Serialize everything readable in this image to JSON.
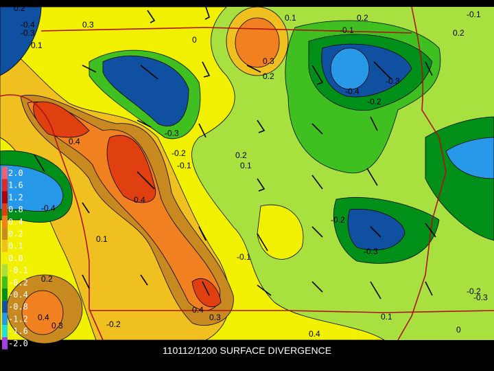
{
  "caption": "110112/1200 SURFACE DIVERGENCE",
  "legend": [
    {
      "label": "2.0",
      "color": "#f06070"
    },
    {
      "label": "1.6",
      "color": "#e02828"
    },
    {
      "label": "1.2",
      "color": "#b00000"
    },
    {
      "label": "0.8",
      "color": "#e04010"
    },
    {
      "label": "0.4",
      "color": "#f08020"
    },
    {
      "label": "0.2",
      "color": "#c88a20"
    },
    {
      "label": "0.1",
      "color": "#f0c020"
    },
    {
      "label": "0.0",
      "color": "#f0f000"
    },
    {
      "label": "-0.1",
      "color": "#a8e040"
    },
    {
      "label": "-0.2",
      "color": "#40c020"
    },
    {
      "label": "-0.4",
      "color": "#00901a"
    },
    {
      "label": "-0.8",
      "color": "#1050a0"
    },
    {
      "label": "-1.2",
      "color": "#2898e8"
    },
    {
      "label": "-1.6",
      "color": "#20e0e0"
    },
    {
      "label": "-2.0",
      "color": "#a040e0"
    }
  ],
  "contour_labels": [
    "-0.4",
    "-0.3",
    "0.1",
    "0.3",
    "0.2",
    "0",
    "-0.1",
    "0.3",
    "0.2",
    "-0.4",
    "-0.3",
    "-0.2",
    "-0.1",
    "0.4",
    "-0.3",
    "-0.2",
    "-0.1",
    "0.2",
    "0.1",
    "0.4",
    "-0.4",
    "0.4",
    "0.1",
    "-0.2",
    "-0.3",
    "-0.1",
    "0.2",
    "0.4",
    "0.3",
    "-0.2",
    "0.4",
    "0.3",
    "-0.2",
    "0.1",
    "0",
    "-0.3",
    "0.2",
    "0.1",
    "0.2"
  ]
}
